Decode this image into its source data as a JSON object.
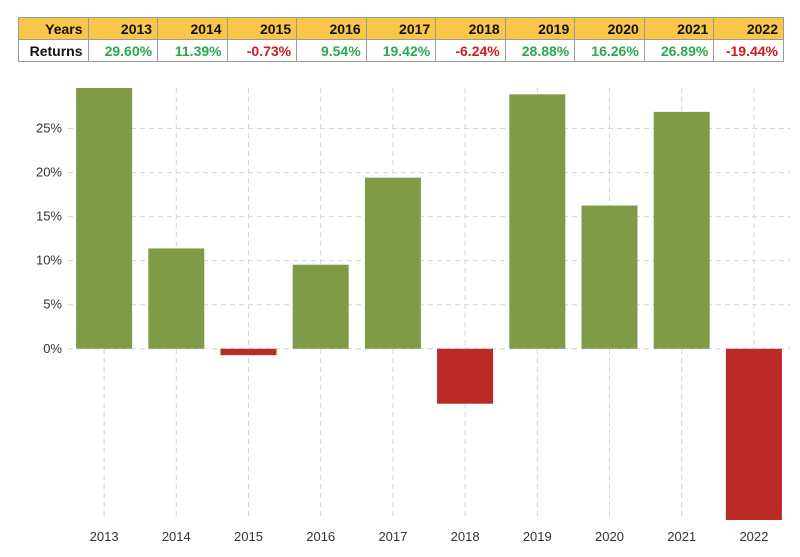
{
  "table": {
    "years_header": "Years",
    "returns_header": "Returns",
    "labels": [
      "29.60%",
      "11.39%",
      "-0.73%",
      "9.54%",
      "19.42%",
      "-6.24%",
      "28.88%",
      "16.26%",
      "26.89%",
      "-19.44%"
    ]
  },
  "colors": {
    "positive_bar": "#7f9b47",
    "negative_bar": "#bb2a26",
    "positive_text": "#2ea84a",
    "negative_text": "#d11a1a",
    "header_bg": "#f8c74a"
  },
  "chart_data": {
    "type": "bar",
    "categories": [
      "2013",
      "2014",
      "2015",
      "2016",
      "2017",
      "2018",
      "2019",
      "2020",
      "2021",
      "2022"
    ],
    "values": [
      29.6,
      11.39,
      -0.73,
      9.54,
      19.42,
      -6.24,
      28.88,
      16.26,
      26.89,
      -19.44
    ],
    "title": "",
    "xlabel": "",
    "ylabel": "",
    "ylim": [
      -19.44,
      29.6
    ],
    "yticks": [
      0,
      5,
      10,
      15,
      20,
      25
    ],
    "ytick_labels": [
      "0%",
      "5%",
      "10%",
      "15%",
      "20%",
      "25%"
    ],
    "grid": true
  }
}
